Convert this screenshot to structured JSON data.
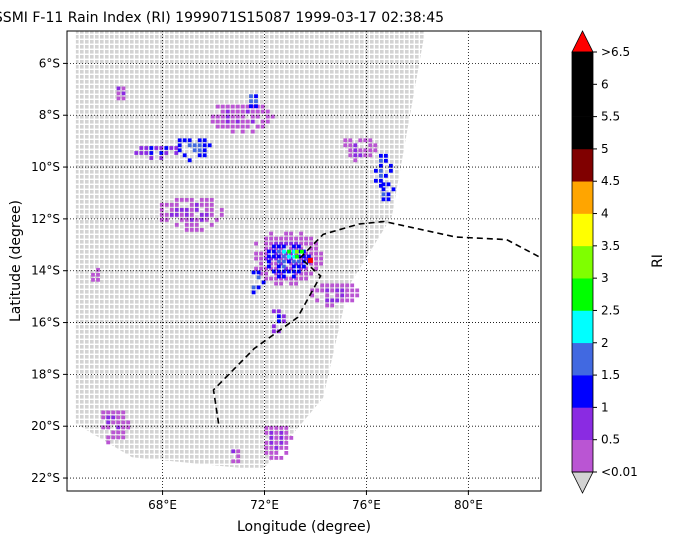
{
  "chart_data": {
    "type": "map",
    "title": "SSMI F-11 Rain Index (RI) 1999071S15087 1999-03-17 02:38:45",
    "xlabel": "Longitude (degree)",
    "ylabel": "Latitude (degree)",
    "xlim": [
      64.25,
      82.85
    ],
    "ylim": [
      -22.5,
      -4.75
    ],
    "x_ticks": [
      {
        "value": 68,
        "label": "68°E"
      },
      {
        "value": 72,
        "label": "72°E"
      },
      {
        "value": 76,
        "label": "76°E"
      },
      {
        "value": 80,
        "label": "80°E"
      }
    ],
    "y_ticks": [
      {
        "value": -6,
        "label": "6°S"
      },
      {
        "value": -8,
        "label": "8°S"
      },
      {
        "value": -10,
        "label": "10°S"
      },
      {
        "value": -12,
        "label": "12°S"
      },
      {
        "value": -14,
        "label": "14°S"
      },
      {
        "value": -16,
        "label": "16°S"
      },
      {
        "value": -18,
        "label": "18°S"
      },
      {
        "value": -20,
        "label": "20°S"
      },
      {
        "value": -22,
        "label": "22°S"
      }
    ],
    "grid": true,
    "swath_color": "#d3d3d3",
    "swath_polygon": [
      [
        64.6,
        -4.75
      ],
      [
        74.3,
        -4.75
      ],
      [
        71.0,
        -21.6
      ],
      [
        66.8,
        -21.2
      ],
      [
        64.6,
        -19.9
      ]
    ],
    "swath_polygon_right": [
      [
        74.3,
        -4.75
      ],
      [
        78.3,
        -4.75
      ],
      [
        77.0,
        -11.9
      ],
      [
        75.3,
        -14.6
      ],
      [
        74.3,
        -18.9
      ],
      [
        72.0,
        -21.6
      ],
      [
        71.0,
        -21.6
      ]
    ],
    "track": [
      [
        70.2,
        -19.9
      ],
      [
        70.0,
        -18.6
      ],
      [
        71.6,
        -17.0
      ],
      [
        73.3,
        -15.8
      ],
      [
        74.2,
        -14.2
      ],
      [
        73.4,
        -13.5
      ],
      [
        74.3,
        -12.6
      ],
      [
        75.7,
        -12.2
      ],
      [
        76.7,
        -12.1
      ],
      [
        79.5,
        -12.7
      ],
      [
        81.5,
        -12.8
      ],
      [
        82.85,
        -13.5
      ]
    ],
    "storm_center": [
      73.8,
      -13.6
    ],
    "rain_clusters": [
      {
        "lon": 66.3,
        "lat": -7.0,
        "rx": 0.3,
        "ry": 0.3,
        "level": 1
      },
      {
        "lon": 67.7,
        "lat": -9.3,
        "rx": 1.0,
        "ry": 0.3,
        "level": 2
      },
      {
        "lon": 69.1,
        "lat": -9.2,
        "rx": 0.7,
        "ry": 0.5,
        "level": 3
      },
      {
        "lon": 71.0,
        "lat": -8.0,
        "rx": 1.3,
        "ry": 0.6,
        "level": 1
      },
      {
        "lon": 71.5,
        "lat": -7.3,
        "rx": 0.3,
        "ry": 0.3,
        "level": 3
      },
      {
        "lon": 69.0,
        "lat": -11.7,
        "rx": 1.3,
        "ry": 0.7,
        "level": 1
      },
      {
        "lon": 72.8,
        "lat": -13.4,
        "rx": 1.4,
        "ry": 1.1,
        "level": 1
      },
      {
        "lon": 72.8,
        "lat": -13.5,
        "rx": 0.9,
        "ry": 0.7,
        "level": 3
      },
      {
        "lon": 72.9,
        "lat": -13.3,
        "rx": 0.4,
        "ry": 0.3,
        "level": 5
      },
      {
        "lon": 73.2,
        "lat": -13.2,
        "rx": 0.2,
        "ry": 0.2,
        "level": 6
      },
      {
        "lon": 71.6,
        "lat": -14.4,
        "rx": 0.3,
        "ry": 0.6,
        "level": 3
      },
      {
        "lon": 74.6,
        "lat": -14.8,
        "rx": 1.0,
        "ry": 0.5,
        "level": 1
      },
      {
        "lon": 72.4,
        "lat": -15.8,
        "rx": 0.3,
        "ry": 0.5,
        "level": 2
      },
      {
        "lon": 75.6,
        "lat": -9.2,
        "rx": 0.7,
        "ry": 0.5,
        "level": 1
      },
      {
        "lon": 76.5,
        "lat": -10.0,
        "rx": 0.4,
        "ry": 0.7,
        "level": 3
      },
      {
        "lon": 76.7,
        "lat": -10.8,
        "rx": 0.3,
        "ry": 0.4,
        "level": 3
      },
      {
        "lon": 65.3,
        "lat": -14.0,
        "rx": 0.3,
        "ry": 0.3,
        "level": 1
      },
      {
        "lon": 66.0,
        "lat": -19.9,
        "rx": 0.6,
        "ry": 0.7,
        "level": 1
      },
      {
        "lon": 72.4,
        "lat": -20.5,
        "rx": 0.6,
        "ry": 0.7,
        "level": 1
      },
      {
        "lon": 70.8,
        "lat": -21.0,
        "rx": 0.3,
        "ry": 0.3,
        "level": 1
      }
    ],
    "colorbar": {
      "label": "RI",
      "orientation": "vertical",
      "extend": "both",
      "bounds": [
        0.01,
        0.5,
        1,
        1.5,
        2,
        2.5,
        3,
        3.5,
        4,
        4.5,
        5,
        5.5,
        6,
        6.5
      ],
      "colors": [
        "#ba55d3",
        "#8a2be2",
        "#0000ff",
        "#4169e1",
        "#00ffff",
        "#00ff00",
        "#7fff00",
        "#ffff00",
        "#ffa500",
        "#800000",
        "#000000",
        "#000000",
        "#000000"
      ],
      "under_color": "#d3d3d3",
      "over_color": "#ff0000",
      "tick_labels": [
        "<0.01",
        "0.5",
        "1",
        "1.5",
        "2",
        "2.5",
        "3",
        "3.5",
        "4",
        "4.5",
        "5",
        "5.5",
        "6",
        ">6.5"
      ]
    }
  }
}
